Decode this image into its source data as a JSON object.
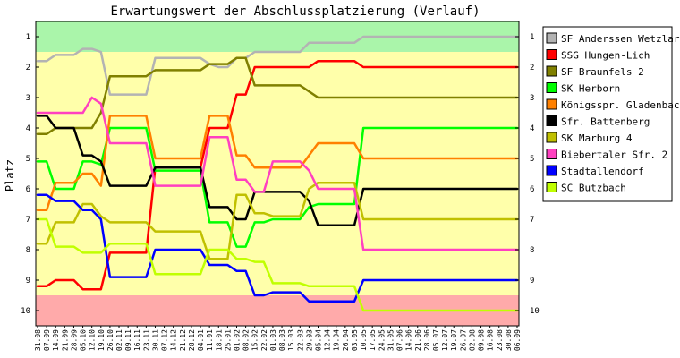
{
  "chart_data": {
    "type": "line",
    "title": "Erwartungswert der Abschlussplatzierung (Verlauf)",
    "xlabel": "",
    "ylabel": "Platz",
    "ylim": [
      10.5,
      0.5
    ],
    "yticks": [
      1,
      2,
      3,
      4,
      5,
      6,
      7,
      8,
      9,
      10
    ],
    "legend_position": "right",
    "grid": false,
    "x": [
      "31.08",
      "07.09",
      "14.09",
      "21.09",
      "28.09",
      "05.10",
      "12.10",
      "19.10",
      "26.10",
      "02.11",
      "09.11",
      "16.11",
      "23.11",
      "30.11",
      "07.12",
      "14.12",
      "21.12",
      "28.12",
      "04.01",
      "11.01",
      "18.01",
      "25.01",
      "01.02",
      "08.02",
      "15.02",
      "22.02",
      "01.03",
      "08.03",
      "15.03",
      "22.03",
      "29.03",
      "05.04",
      "12.04",
      "19.04",
      "26.04",
      "03.05",
      "10.05",
      "17.05",
      "24.05",
      "31.05",
      "07.06",
      "14.06",
      "21.06",
      "28.06",
      "05.07",
      "12.07",
      "19.07",
      "26.07",
      "02.08",
      "09.08",
      "16.08",
      "23.08",
      "30.08",
      "06.09"
    ],
    "bands": [
      {
        "from": 0.5,
        "to": 1.5,
        "color": "#aaf5aa"
      },
      {
        "from": 1.5,
        "to": 9.5,
        "color": "#ffffaa"
      },
      {
        "from": 9.5,
        "to": 10.5,
        "color": "#ffaaaa"
      }
    ],
    "series": [
      {
        "name": "SF Anderssen Wetzlar",
        "color": "#b3b3b3",
        "values": [
          1.8,
          1.8,
          1.6,
          1.6,
          1.6,
          1.4,
          1.4,
          1.5,
          2.9,
          2.9,
          2.9,
          2.9,
          2.9,
          1.7,
          1.7,
          1.7,
          1.7,
          1.7,
          1.7,
          1.9,
          2.0,
          2.0,
          1.7,
          1.7,
          1.5,
          1.5,
          1.5,
          1.5,
          1.5,
          1.5,
          1.2,
          1.2,
          1.2,
          1.2,
          1.2,
          1.2,
          1.0,
          1.0,
          1.0,
          1.0,
          1.0,
          1.0,
          1.0,
          1.0,
          1.0,
          1.0,
          1.0,
          1.0,
          1.0,
          1.0,
          1.0,
          1.0,
          1.0,
          1.0
        ]
      },
      {
        "name": "SSG Hungen-Lich",
        "color": "#ff0000",
        "values": [
          9.2,
          9.2,
          9.0,
          9.0,
          9.0,
          9.3,
          9.3,
          9.3,
          8.1,
          8.1,
          8.1,
          8.1,
          8.1,
          5.3,
          5.3,
          5.3,
          5.3,
          5.3,
          5.3,
          4.0,
          4.0,
          4.0,
          2.9,
          2.9,
          2.0,
          2.0,
          2.0,
          2.0,
          2.0,
          2.0,
          2.0,
          1.8,
          1.8,
          1.8,
          1.8,
          1.8,
          2.0,
          2.0,
          2.0,
          2.0,
          2.0,
          2.0,
          2.0,
          2.0,
          2.0,
          2.0,
          2.0,
          2.0,
          2.0,
          2.0,
          2.0,
          2.0,
          2.0,
          2.0
        ]
      },
      {
        "name": "SF Braunfels 2",
        "color": "#808000",
        "values": [
          4.2,
          4.2,
          4.0,
          4.0,
          4.0,
          4.0,
          4.0,
          3.5,
          2.3,
          2.3,
          2.3,
          2.3,
          2.3,
          2.1,
          2.1,
          2.1,
          2.1,
          2.1,
          2.1,
          1.9,
          1.9,
          1.9,
          1.7,
          1.7,
          2.6,
          2.6,
          2.6,
          2.6,
          2.6,
          2.6,
          2.8,
          3.0,
          3.0,
          3.0,
          3.0,
          3.0,
          3.0,
          3.0,
          3.0,
          3.0,
          3.0,
          3.0,
          3.0,
          3.0,
          3.0,
          3.0,
          3.0,
          3.0,
          3.0,
          3.0,
          3.0,
          3.0,
          3.0,
          3.0
        ]
      },
      {
        "name": "SK Herborn",
        "color": "#00ff00",
        "values": [
          5.1,
          5.1,
          6.0,
          6.0,
          6.0,
          5.1,
          5.1,
          5.2,
          4.0,
          4.0,
          4.0,
          4.0,
          4.0,
          5.4,
          5.4,
          5.4,
          5.4,
          5.4,
          5.4,
          7.1,
          7.1,
          7.1,
          7.9,
          7.9,
          7.1,
          7.1,
          7.0,
          7.0,
          7.0,
          7.0,
          6.6,
          6.5,
          6.5,
          6.5,
          6.5,
          6.5,
          4.0,
          4.0,
          4.0,
          4.0,
          4.0,
          4.0,
          4.0,
          4.0,
          4.0,
          4.0,
          4.0,
          4.0,
          4.0,
          4.0,
          4.0,
          4.0,
          4.0,
          4.0
        ]
      },
      {
        "name": "Königsspr. Gladenbach",
        "color": "#ff8000",
        "values": [
          6.7,
          6.7,
          5.8,
          5.8,
          5.8,
          5.5,
          5.5,
          5.9,
          3.6,
          3.6,
          3.6,
          3.6,
          3.6,
          5.0,
          5.0,
          5.0,
          5.0,
          5.0,
          5.0,
          3.6,
          3.6,
          3.6,
          4.9,
          4.9,
          5.3,
          5.3,
          5.3,
          5.3,
          5.3,
          5.3,
          4.9,
          4.5,
          4.5,
          4.5,
          4.5,
          4.5,
          5.0,
          5.0,
          5.0,
          5.0,
          5.0,
          5.0,
          5.0,
          5.0,
          5.0,
          5.0,
          5.0,
          5.0,
          5.0,
          5.0,
          5.0,
          5.0,
          5.0,
          5.0
        ]
      },
      {
        "name": "Sfr. Battenberg",
        "color": "#000000",
        "values": [
          3.6,
          3.6,
          4.0,
          4.0,
          4.0,
          4.9,
          4.9,
          5.1,
          5.9,
          5.9,
          5.9,
          5.9,
          5.9,
          5.3,
          5.3,
          5.3,
          5.3,
          5.3,
          5.3,
          6.6,
          6.6,
          6.6,
          7.0,
          7.0,
          6.1,
          6.1,
          6.1,
          6.1,
          6.1,
          6.1,
          6.4,
          7.2,
          7.2,
          7.2,
          7.2,
          7.2,
          6.0,
          6.0,
          6.0,
          6.0,
          6.0,
          6.0,
          6.0,
          6.0,
          6.0,
          6.0,
          6.0,
          6.0,
          6.0,
          6.0,
          6.0,
          6.0,
          6.0,
          6.0
        ]
      },
      {
        "name": "SK Marburg 4",
        "color": "#c0c000",
        "values": [
          7.8,
          7.8,
          7.1,
          7.1,
          7.1,
          6.5,
          6.5,
          6.9,
          7.1,
          7.1,
          7.1,
          7.1,
          7.1,
          7.4,
          7.4,
          7.4,
          7.4,
          7.4,
          7.4,
          8.3,
          8.3,
          8.3,
          6.2,
          6.2,
          6.8,
          6.8,
          6.9,
          6.9,
          6.9,
          6.9,
          6.0,
          5.8,
          5.8,
          5.8,
          5.8,
          5.8,
          7.0,
          7.0,
          7.0,
          7.0,
          7.0,
          7.0,
          7.0,
          7.0,
          7.0,
          7.0,
          7.0,
          7.0,
          7.0,
          7.0,
          7.0,
          7.0,
          7.0,
          7.0
        ]
      },
      {
        "name": "Biebertaler Sfr. 2",
        "color": "#ff40c0",
        "values": [
          3.5,
          3.5,
          3.5,
          3.5,
          3.5,
          3.5,
          3.0,
          3.2,
          4.5,
          4.5,
          4.5,
          4.5,
          4.5,
          5.9,
          5.9,
          5.9,
          5.9,
          5.9,
          5.9,
          4.3,
          4.3,
          4.3,
          5.7,
          5.7,
          6.1,
          6.1,
          5.1,
          5.1,
          5.1,
          5.1,
          5.4,
          6.0,
          6.0,
          6.0,
          6.0,
          6.0,
          8.0,
          8.0,
          8.0,
          8.0,
          8.0,
          8.0,
          8.0,
          8.0,
          8.0,
          8.0,
          8.0,
          8.0,
          8.0,
          8.0,
          8.0,
          8.0,
          8.0,
          8.0
        ]
      },
      {
        "name": "Stadtallendorf",
        "color": "#0000ff",
        "values": [
          6.2,
          6.2,
          6.4,
          6.4,
          6.4,
          6.7,
          6.7,
          7.0,
          8.9,
          8.9,
          8.9,
          8.9,
          8.9,
          8.0,
          8.0,
          8.0,
          8.0,
          8.0,
          8.0,
          8.5,
          8.5,
          8.5,
          8.7,
          8.7,
          9.5,
          9.5,
          9.4,
          9.4,
          9.4,
          9.4,
          9.7,
          9.7,
          9.7,
          9.7,
          9.7,
          9.7,
          9.0,
          9.0,
          9.0,
          9.0,
          9.0,
          9.0,
          9.0,
          9.0,
          9.0,
          9.0,
          9.0,
          9.0,
          9.0,
          9.0,
          9.0,
          9.0,
          9.0,
          9.0
        ]
      },
      {
        "name": "SC Butzbach",
        "color": "#c0ff00",
        "values": [
          7.0,
          7.0,
          7.9,
          7.9,
          7.9,
          8.1,
          8.1,
          8.1,
          7.8,
          7.8,
          7.8,
          7.8,
          7.8,
          8.8,
          8.8,
          8.8,
          8.8,
          8.8,
          8.8,
          8.0,
          8.0,
          8.0,
          8.3,
          8.3,
          8.4,
          8.4,
          9.1,
          9.1,
          9.1,
          9.1,
          9.2,
          9.2,
          9.2,
          9.2,
          9.2,
          9.2,
          10.0,
          10.0,
          10.0,
          10.0,
          10.0,
          10.0,
          10.0,
          10.0,
          10.0,
          10.0,
          10.0,
          10.0,
          10.0,
          10.0,
          10.0,
          10.0,
          10.0,
          10.0
        ]
      }
    ]
  }
}
